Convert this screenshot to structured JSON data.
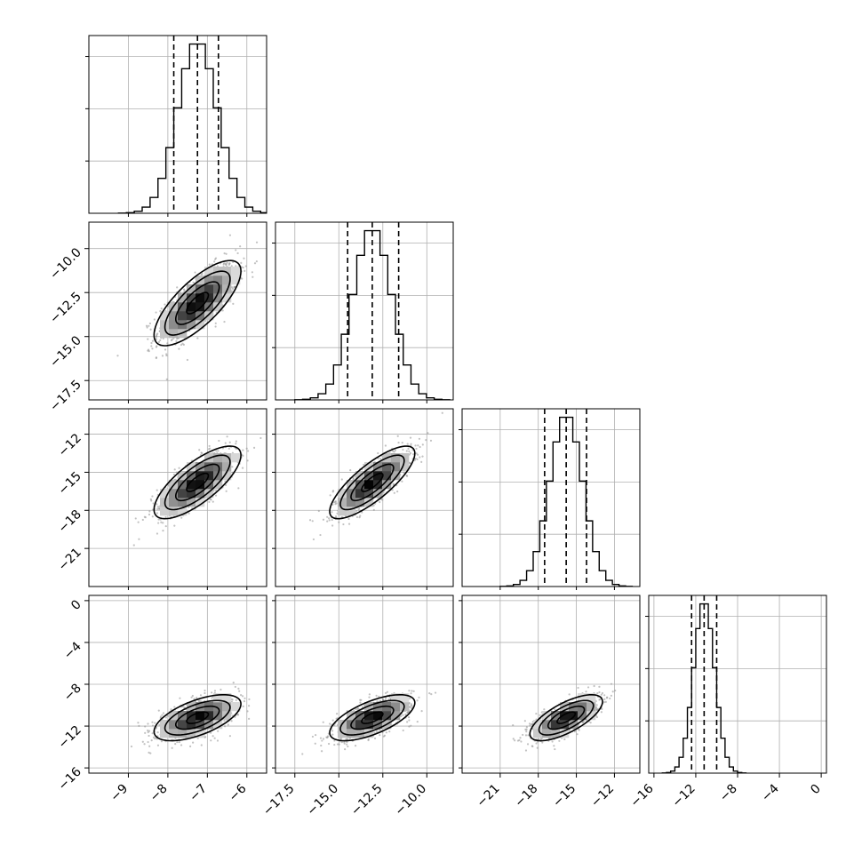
{
  "chart_data": {
    "type": "corner",
    "parameters": [
      {
        "index": 0,
        "range": [
          -10,
          -5.5
        ],
        "ticks": [
          -9,
          -8,
          -7,
          -6
        ],
        "tick_labels": [
          "−9",
          "−8",
          "−7",
          "−6"
        ],
        "mean": -7.25,
        "sd": 0.5,
        "quantiles": [
          -7.85,
          -7.25,
          -6.72
        ]
      },
      {
        "index": 1,
        "range": [
          -18.6,
          -8.5
        ],
        "ticks": [
          -17.5,
          -15.0,
          -12.5,
          -10.0
        ],
        "tick_labels": [
          "−17.5",
          "−15.0",
          "−12.5",
          "−10.0"
        ],
        "mean": -13.1,
        "sd": 1.1,
        "quantiles": [
          -14.5,
          -13.1,
          -11.6
        ]
      },
      {
        "index": 2,
        "range": [
          -24,
          -10
        ],
        "ticks": [
          -21,
          -18,
          -15,
          -12
        ],
        "tick_labels": [
          "−21",
          "−18",
          "−15",
          "−12"
        ],
        "mean": -15.8,
        "sd": 1.3,
        "quantiles": [
          -17.5,
          -15.8,
          -14.2
        ]
      },
      {
        "index": 3,
        "range": [
          -16.5,
          0.5
        ],
        "ticks": [
          -16,
          -12,
          -8,
          -4,
          0
        ],
        "tick_labels": [
          "−16",
          "−12",
          "−8",
          "−4",
          "0"
        ],
        "mean": -11.2,
        "sd": 1.0,
        "quantiles": [
          -12.4,
          -11.2,
          -10.0
        ]
      }
    ],
    "correlations": [
      [
        1,
        0.75,
        0.75,
        0.6
      ],
      [
        0.75,
        1,
        0.8,
        0.65
      ],
      [
        0.75,
        0.8,
        1,
        0.7
      ],
      [
        0.6,
        0.65,
        0.7,
        1
      ]
    ],
    "contour_levels_sigma": [
      0.5,
      1.0,
      1.5,
      2.0
    ],
    "grid": true,
    "colors": {
      "points": "#9a9a9a",
      "density_dark": "#000000",
      "line": "#000000",
      "grid": "#b0b0b0"
    }
  }
}
